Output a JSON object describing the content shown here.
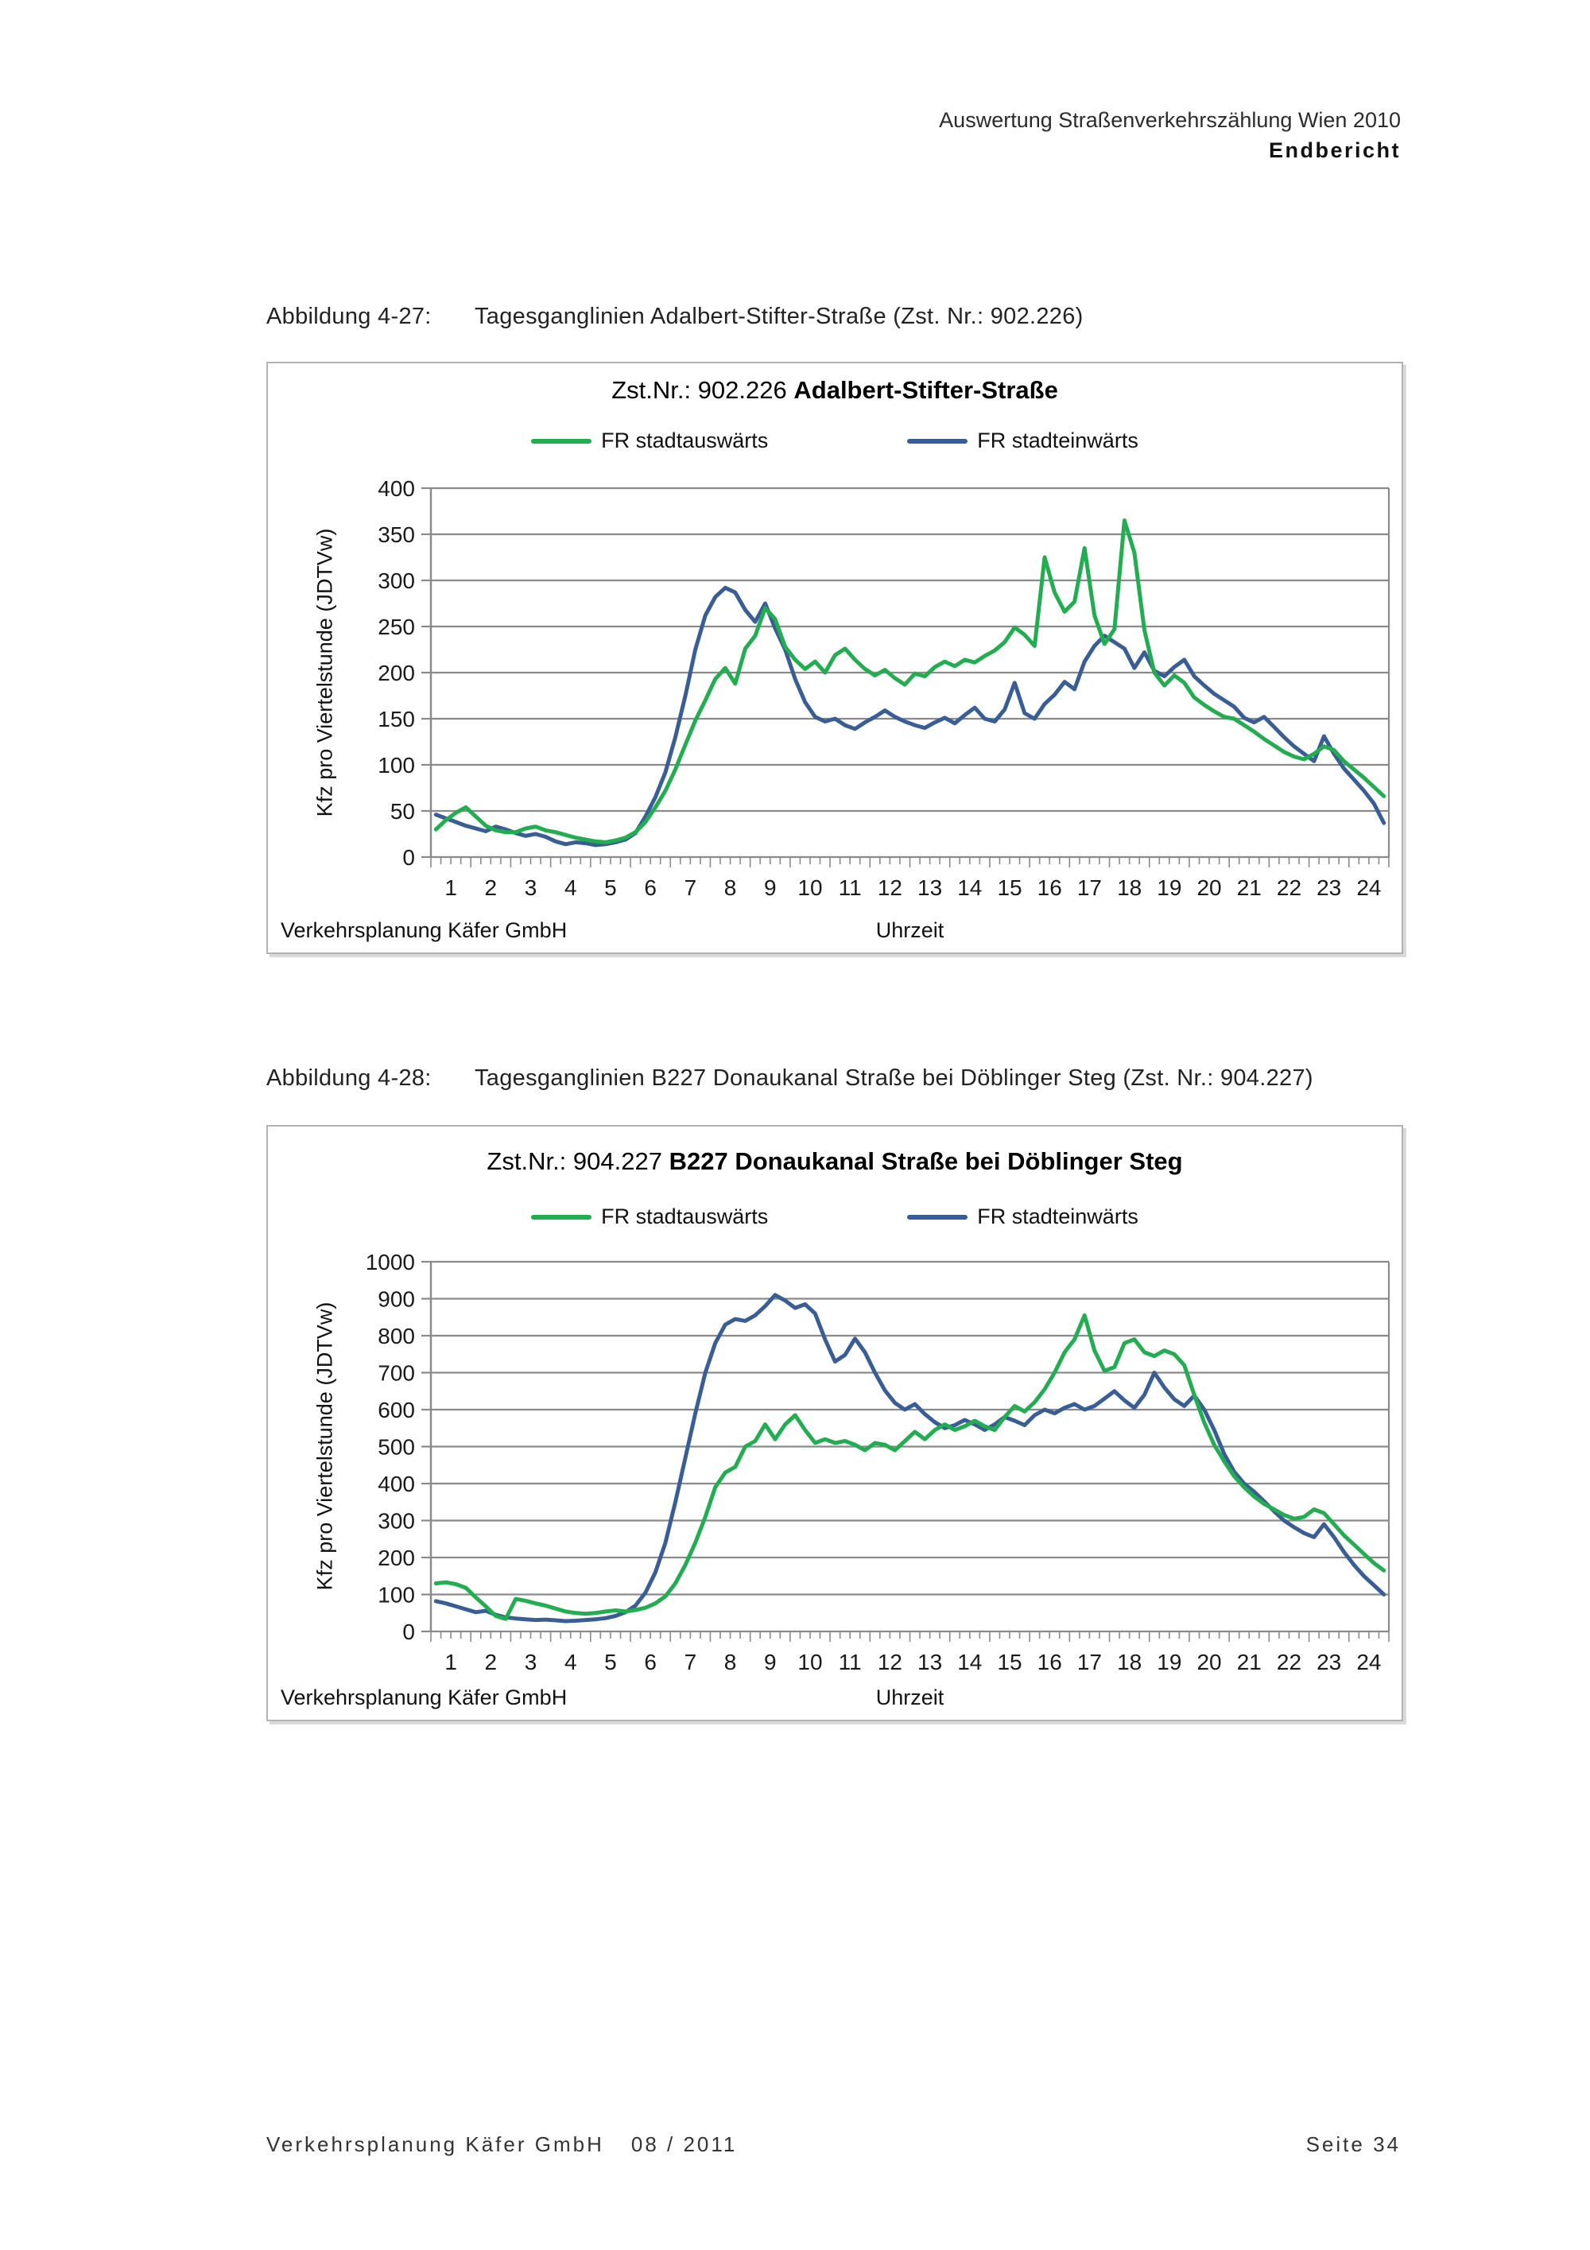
{
  "page": {
    "header": {
      "line1": "Auswertung Straßenverkehrszählung Wien 2010",
      "line2": "Endbericht"
    },
    "figures": [
      {
        "label": "Abbildung 4-27:",
        "caption": "Tagesganglinien Adalbert-Stifter-Straße (Zst. Nr.: 902.226)"
      },
      {
        "label": "Abbildung 4-28:",
        "caption": "Tagesganglinien B227 Donaukanal Straße bei Döblinger Steg (Zst. Nr.: 904.227)"
      }
    ],
    "footer": {
      "company": "Verkehrsplanung Käfer GmbH",
      "date": "08 / 2011",
      "page_number": "Seite 34"
    }
  },
  "chart_data": [
    {
      "type": "line",
      "title": "Zst.Nr.: 902.226 Adalbert-Stifter-Straße",
      "title_prefix": "Zst.Nr.: 902.226",
      "title_bold": "Adalbert-Stifter-Straße",
      "xlabel": "Uhrzeit",
      "ylabel": "Kfz pro Viertelstunde (JDTVw)",
      "source_label": "Verkehrsplanung Käfer GmbH",
      "ylim": [
        0,
        400
      ],
      "ytick_step": 50,
      "grid": true,
      "legend_position": "top",
      "x_resolution": "quarter-hour, 96 points",
      "x_labels": [
        "1",
        "2",
        "3",
        "4",
        "5",
        "6",
        "7",
        "8",
        "9",
        "10",
        "11",
        "12",
        "13",
        "14",
        "15",
        "16",
        "17",
        "18",
        "19",
        "20",
        "21",
        "22",
        "23",
        "24"
      ],
      "series": [
        {
          "name": "FR stadtauswärts",
          "color": "#21ad50",
          "values": [
            30,
            40,
            48,
            54,
            44,
            34,
            29,
            27,
            27,
            31,
            33,
            29,
            27,
            24,
            21,
            19,
            17,
            16,
            18,
            21,
            27,
            38,
            54,
            72,
            95,
            122,
            148,
            170,
            193,
            205,
            188,
            226,
            240,
            270,
            258,
            228,
            214,
            204,
            212,
            200,
            219,
            226,
            214,
            204,
            197,
            203,
            194,
            187,
            199,
            196,
            206,
            212,
            207,
            214,
            211,
            218,
            224,
            233,
            249,
            241,
            229,
            325,
            287,
            266,
            277,
            335,
            262,
            231,
            247,
            365,
            330,
            246,
            200,
            186,
            197,
            189,
            173,
            165,
            158,
            152,
            150,
            143,
            136,
            128,
            121,
            114,
            109,
            106,
            112,
            120,
            116,
            104,
            95,
            86,
            76,
            66
          ]
        },
        {
          "name": "FR stadteinwärts",
          "color": "#395e96",
          "values": [
            46,
            42,
            38,
            34,
            31,
            28,
            33,
            30,
            26,
            23,
            25,
            22,
            17,
            14,
            16,
            15,
            13,
            14,
            16,
            19,
            26,
            44,
            65,
            92,
            130,
            175,
            225,
            262,
            282,
            292,
            287,
            268,
            255,
            275,
            248,
            225,
            193,
            168,
            152,
            147,
            150,
            143,
            139,
            146,
            152,
            159,
            152,
            147,
            143,
            140,
            146,
            151,
            145,
            154,
            162,
            150,
            147,
            160,
            189,
            156,
            150,
            166,
            176,
            190,
            182,
            212,
            229,
            240,
            233,
            226,
            205,
            222,
            202,
            196,
            206,
            214,
            196,
            186,
            177,
            170,
            163,
            151,
            146,
            152,
            141,
            130,
            120,
            112,
            104,
            131,
            112,
            96,
            84,
            72,
            58,
            37
          ]
        }
      ]
    },
    {
      "type": "line",
      "title": "Zst.Nr.: 904.227 B227 Donaukanal Straße bei Döblinger Steg",
      "title_prefix": "Zst.Nr.: 904.227",
      "title_bold": "B227 Donaukanal Straße bei Döblinger Steg",
      "xlabel": "Uhrzeit",
      "ylabel": "Kfz pro Viertelstunde (JDTVw)",
      "source_label": "Verkehrsplanung Käfer GmbH",
      "ylim": [
        0,
        1000
      ],
      "ytick_step": 100,
      "grid": true,
      "legend_position": "top",
      "x_resolution": "quarter-hour, 96 points",
      "x_labels": [
        "1",
        "2",
        "3",
        "4",
        "5",
        "6",
        "7",
        "8",
        "9",
        "10",
        "11",
        "12",
        "13",
        "14",
        "15",
        "16",
        "17",
        "18",
        "19",
        "20",
        "21",
        "22",
        "23",
        "24"
      ],
      "series": [
        {
          "name": "FR stadtauswärts",
          "color": "#21ad50",
          "values": [
            130,
            133,
            128,
            118,
            92,
            68,
            42,
            34,
            88,
            83,
            76,
            70,
            62,
            54,
            50,
            48,
            50,
            54,
            57,
            54,
            58,
            64,
            76,
            95,
            130,
            180,
            240,
            310,
            390,
            430,
            445,
            500,
            515,
            560,
            520,
            560,
            585,
            545,
            510,
            520,
            510,
            515,
            505,
            490,
            510,
            505,
            490,
            515,
            540,
            520,
            545,
            560,
            545,
            555,
            570,
            555,
            545,
            580,
            610,
            595,
            620,
            655,
            700,
            755,
            790,
            855,
            760,
            705,
            715,
            780,
            790,
            755,
            745,
            760,
            750,
            720,
            640,
            565,
            505,
            460,
            420,
            390,
            365,
            345,
            330,
            315,
            305,
            310,
            330,
            320,
            290,
            260,
            235,
            210,
            185,
            165
          ]
        },
        {
          "name": "FR stadteinwärts",
          "color": "#395e96",
          "values": [
            82,
            76,
            68,
            60,
            52,
            56,
            45,
            38,
            35,
            33,
            31,
            32,
            30,
            28,
            29,
            31,
            33,
            36,
            42,
            52,
            70,
            105,
            160,
            240,
            350,
            470,
            590,
            700,
            780,
            830,
            845,
            840,
            855,
            880,
            910,
            895,
            875,
            885,
            860,
            790,
            730,
            748,
            792,
            755,
            700,
            652,
            618,
            600,
            615,
            588,
            566,
            550,
            558,
            572,
            560,
            545,
            560,
            580,
            570,
            558,
            585,
            600,
            590,
            605,
            615,
            600,
            610,
            630,
            650,
            625,
            605,
            640,
            700,
            660,
            628,
            610,
            638,
            600,
            545,
            480,
            432,
            400,
            378,
            352,
            325,
            300,
            282,
            266,
            255,
            290,
            255,
            215,
            180,
            150,
            125,
            100
          ]
        }
      ]
    }
  ]
}
